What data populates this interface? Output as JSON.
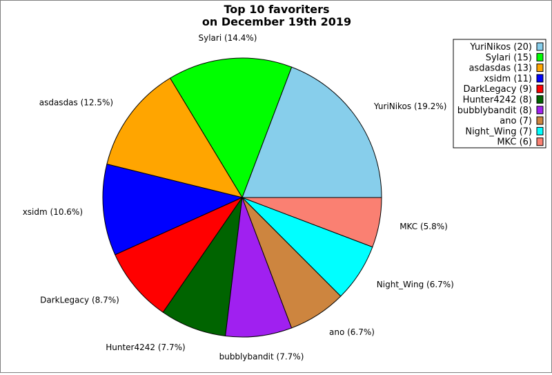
{
  "chart_data": {
    "type": "pie",
    "title_lines": [
      "Top 10 favoriters",
      "on December 19th 2019"
    ],
    "slices": [
      {
        "name": "YuriNikos",
        "value": 20,
        "percent_label": "19.2%",
        "legend_label": "YuriNikos (20)",
        "color": "#87ceeb"
      },
      {
        "name": "Sylari",
        "value": 15,
        "percent_label": "14.4%",
        "legend_label": "Sylari (15)",
        "color": "#00ff00"
      },
      {
        "name": "asdasdas",
        "value": 13,
        "percent_label": "12.5%",
        "legend_label": "asdasdas (13)",
        "color": "#ffa500"
      },
      {
        "name": "xsidm",
        "value": 11,
        "percent_label": "10.6%",
        "legend_label": "xsidm (11)",
        "color": "#0000ff"
      },
      {
        "name": "DarkLegacy",
        "value": 9,
        "percent_label": "8.7%",
        "legend_label": "DarkLegacy (9)",
        "color": "#ff0000"
      },
      {
        "name": "Hunter4242",
        "value": 8,
        "percent_label": "7.7%",
        "legend_label": "Hunter4242 (8)",
        "color": "#006400"
      },
      {
        "name": "bubblybandit",
        "value": 8,
        "percent_label": "7.7%",
        "legend_label": "bubblybandit (8)",
        "color": "#a020f0"
      },
      {
        "name": "ano",
        "value": 7,
        "percent_label": "6.7%",
        "legend_label": "ano (7)",
        "color": "#cd853f"
      },
      {
        "name": "Night_Wing",
        "value": 7,
        "percent_label": "6.7%",
        "legend_label": "Night_Wing (7)",
        "color": "#00ffff"
      },
      {
        "name": "MKC",
        "value": 6,
        "percent_label": "5.8%",
        "legend_label": "MKC (6)",
        "color": "#fa8072"
      }
    ],
    "legend_position": "top-right",
    "start_angle": "3 o'clock",
    "direction": "counter-clockwise"
  }
}
